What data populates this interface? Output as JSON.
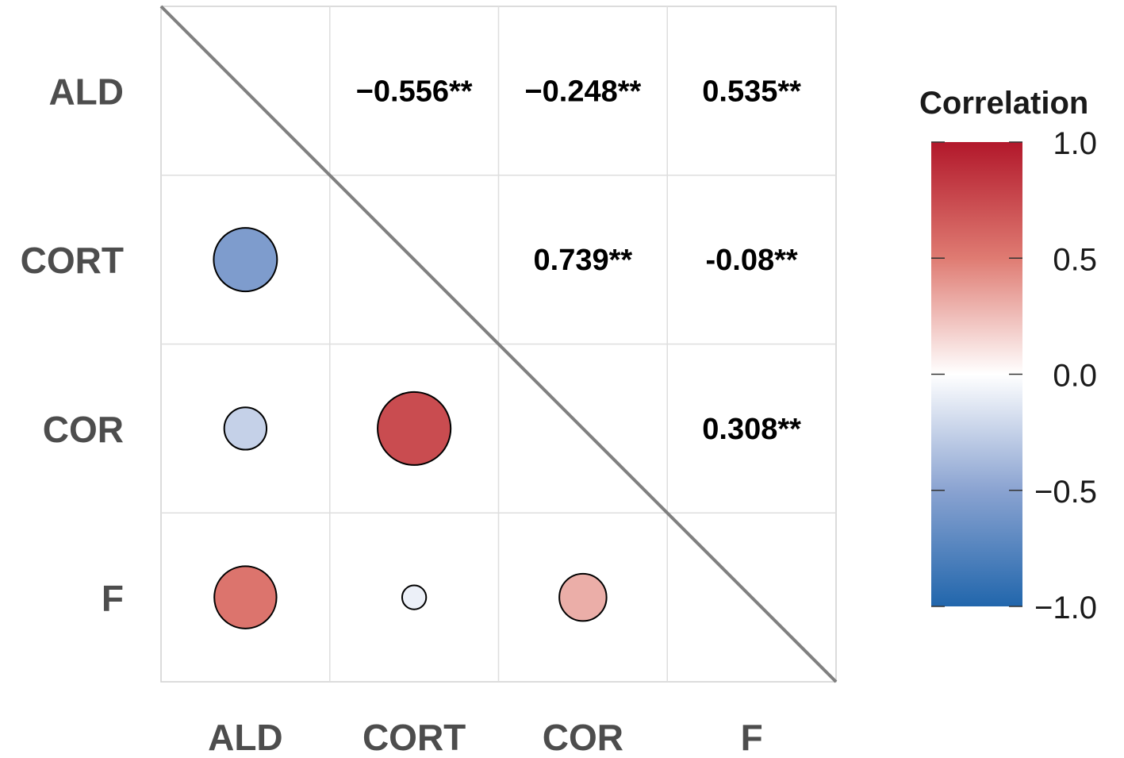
{
  "chart_data": {
    "type": "heatmap",
    "subtype": "correlation-matrix",
    "variables": [
      "ALD",
      "CORT",
      "COR",
      "F"
    ],
    "correlations": [
      {
        "row": "CORT",
        "col": "ALD",
        "value": -0.556,
        "label": "−0.556**"
      },
      {
        "row": "COR",
        "col": "ALD",
        "value": -0.248,
        "label": "−0.248**"
      },
      {
        "row": "F",
        "col": "ALD",
        "value": 0.535,
        "label": "0.535**"
      },
      {
        "row": "COR",
        "col": "CORT",
        "value": 0.739,
        "label": "0.739**"
      },
      {
        "row": "F",
        "col": "CORT",
        "value": -0.08,
        "label": "-0.08**"
      },
      {
        "row": "F",
        "col": "COR",
        "value": 0.308,
        "label": "0.308**"
      }
    ],
    "upper_triangle": "text",
    "lower_triangle": "circles",
    "diagonal_line": true,
    "legend": {
      "title": "Correlation",
      "ticks": [
        "1.0",
        "0.5",
        "0.0",
        "−0.5",
        "−1.0"
      ],
      "tick_values": [
        1.0,
        0.5,
        0.0,
        -0.5,
        -1.0
      ],
      "range": [
        -1,
        1
      ],
      "colors": {
        "low": "#2166ac",
        "mid": "#ffffff",
        "high": "#b2182b"
      },
      "placement": "right"
    },
    "grid": true
  }
}
